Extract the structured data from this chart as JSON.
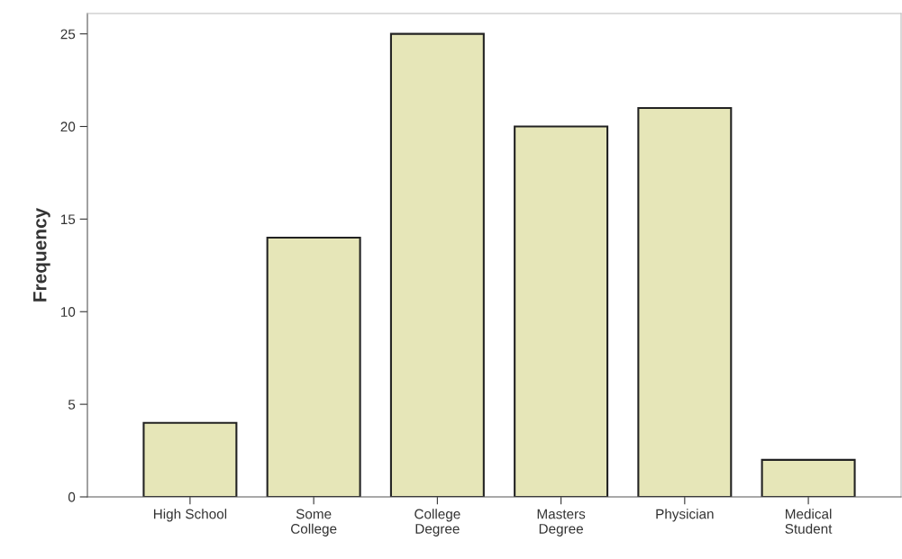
{
  "chart_data": {
    "type": "bar",
    "ylabel": "Frequency",
    "categories": [
      "High School",
      "Some\nCollege",
      "College\nDegree",
      "Masters\nDegree",
      "Physician",
      "Medical\nStudent"
    ],
    "values": [
      4,
      14,
      25,
      20,
      21,
      2
    ],
    "color": "#e6e6b8",
    "ylim": [
      0,
      26.1
    ],
    "yticks": [
      0,
      5,
      10,
      15,
      20,
      25
    ],
    "grid": false
  }
}
